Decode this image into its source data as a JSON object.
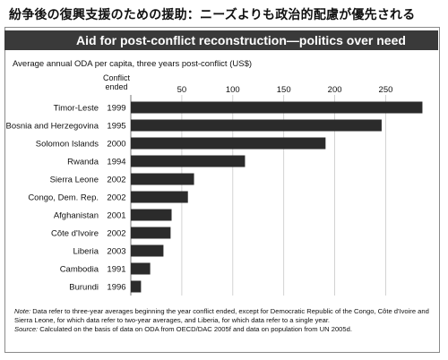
{
  "header": {
    "jp_title": "紛争後の復興支援のための援助：ニーズよりも政治的配慮が優先される",
    "en_title": "Aid for post-conflict reconstruction—politics over need"
  },
  "chart_data": {
    "type": "bar",
    "orientation": "horizontal",
    "title": "Aid for post-conflict reconstruction—politics over need",
    "subtitle": "Average annual ODA per capita, three years post-conflict (US$)",
    "column_header": "Conflict ended",
    "categories": [
      "Timor-Leste",
      "Bosnia and Herzegovina",
      "Solomon Islands",
      "Rwanda",
      "Sierra Leone",
      "Congo, Dem. Rep.",
      "Afghanistan",
      "Côte d'Ivoire",
      "Liberia",
      "Cambodia",
      "Burundi"
    ],
    "years": [
      "1999",
      "1995",
      "2000",
      "1994",
      "2002",
      "2002",
      "2001",
      "2002",
      "2003",
      "1991",
      "1996"
    ],
    "values": [
      286,
      246,
      191,
      112,
      62,
      56,
      40,
      39,
      32,
      19,
      10
    ],
    "xticks": [
      "50",
      "100",
      "150",
      "200",
      "250"
    ],
    "xlim": [
      0,
      290
    ],
    "grid": true,
    "bar_color": "#2b2b2b"
  },
  "notes": {
    "note_label": "Note:",
    "note_text": " Data refer to three-year averages beginning the year conflict ended, except for Democratic Republic of the Congo, Côte d'Ivoire and Sierra Leone, for which data refer to two-year averages, and Liberia, for which data refer to a single year.",
    "source_label": "Source:",
    "source_text": " Calculated on the basis of data on ODA from OECD/DAC 2005f and data on population from UN 2005d."
  }
}
